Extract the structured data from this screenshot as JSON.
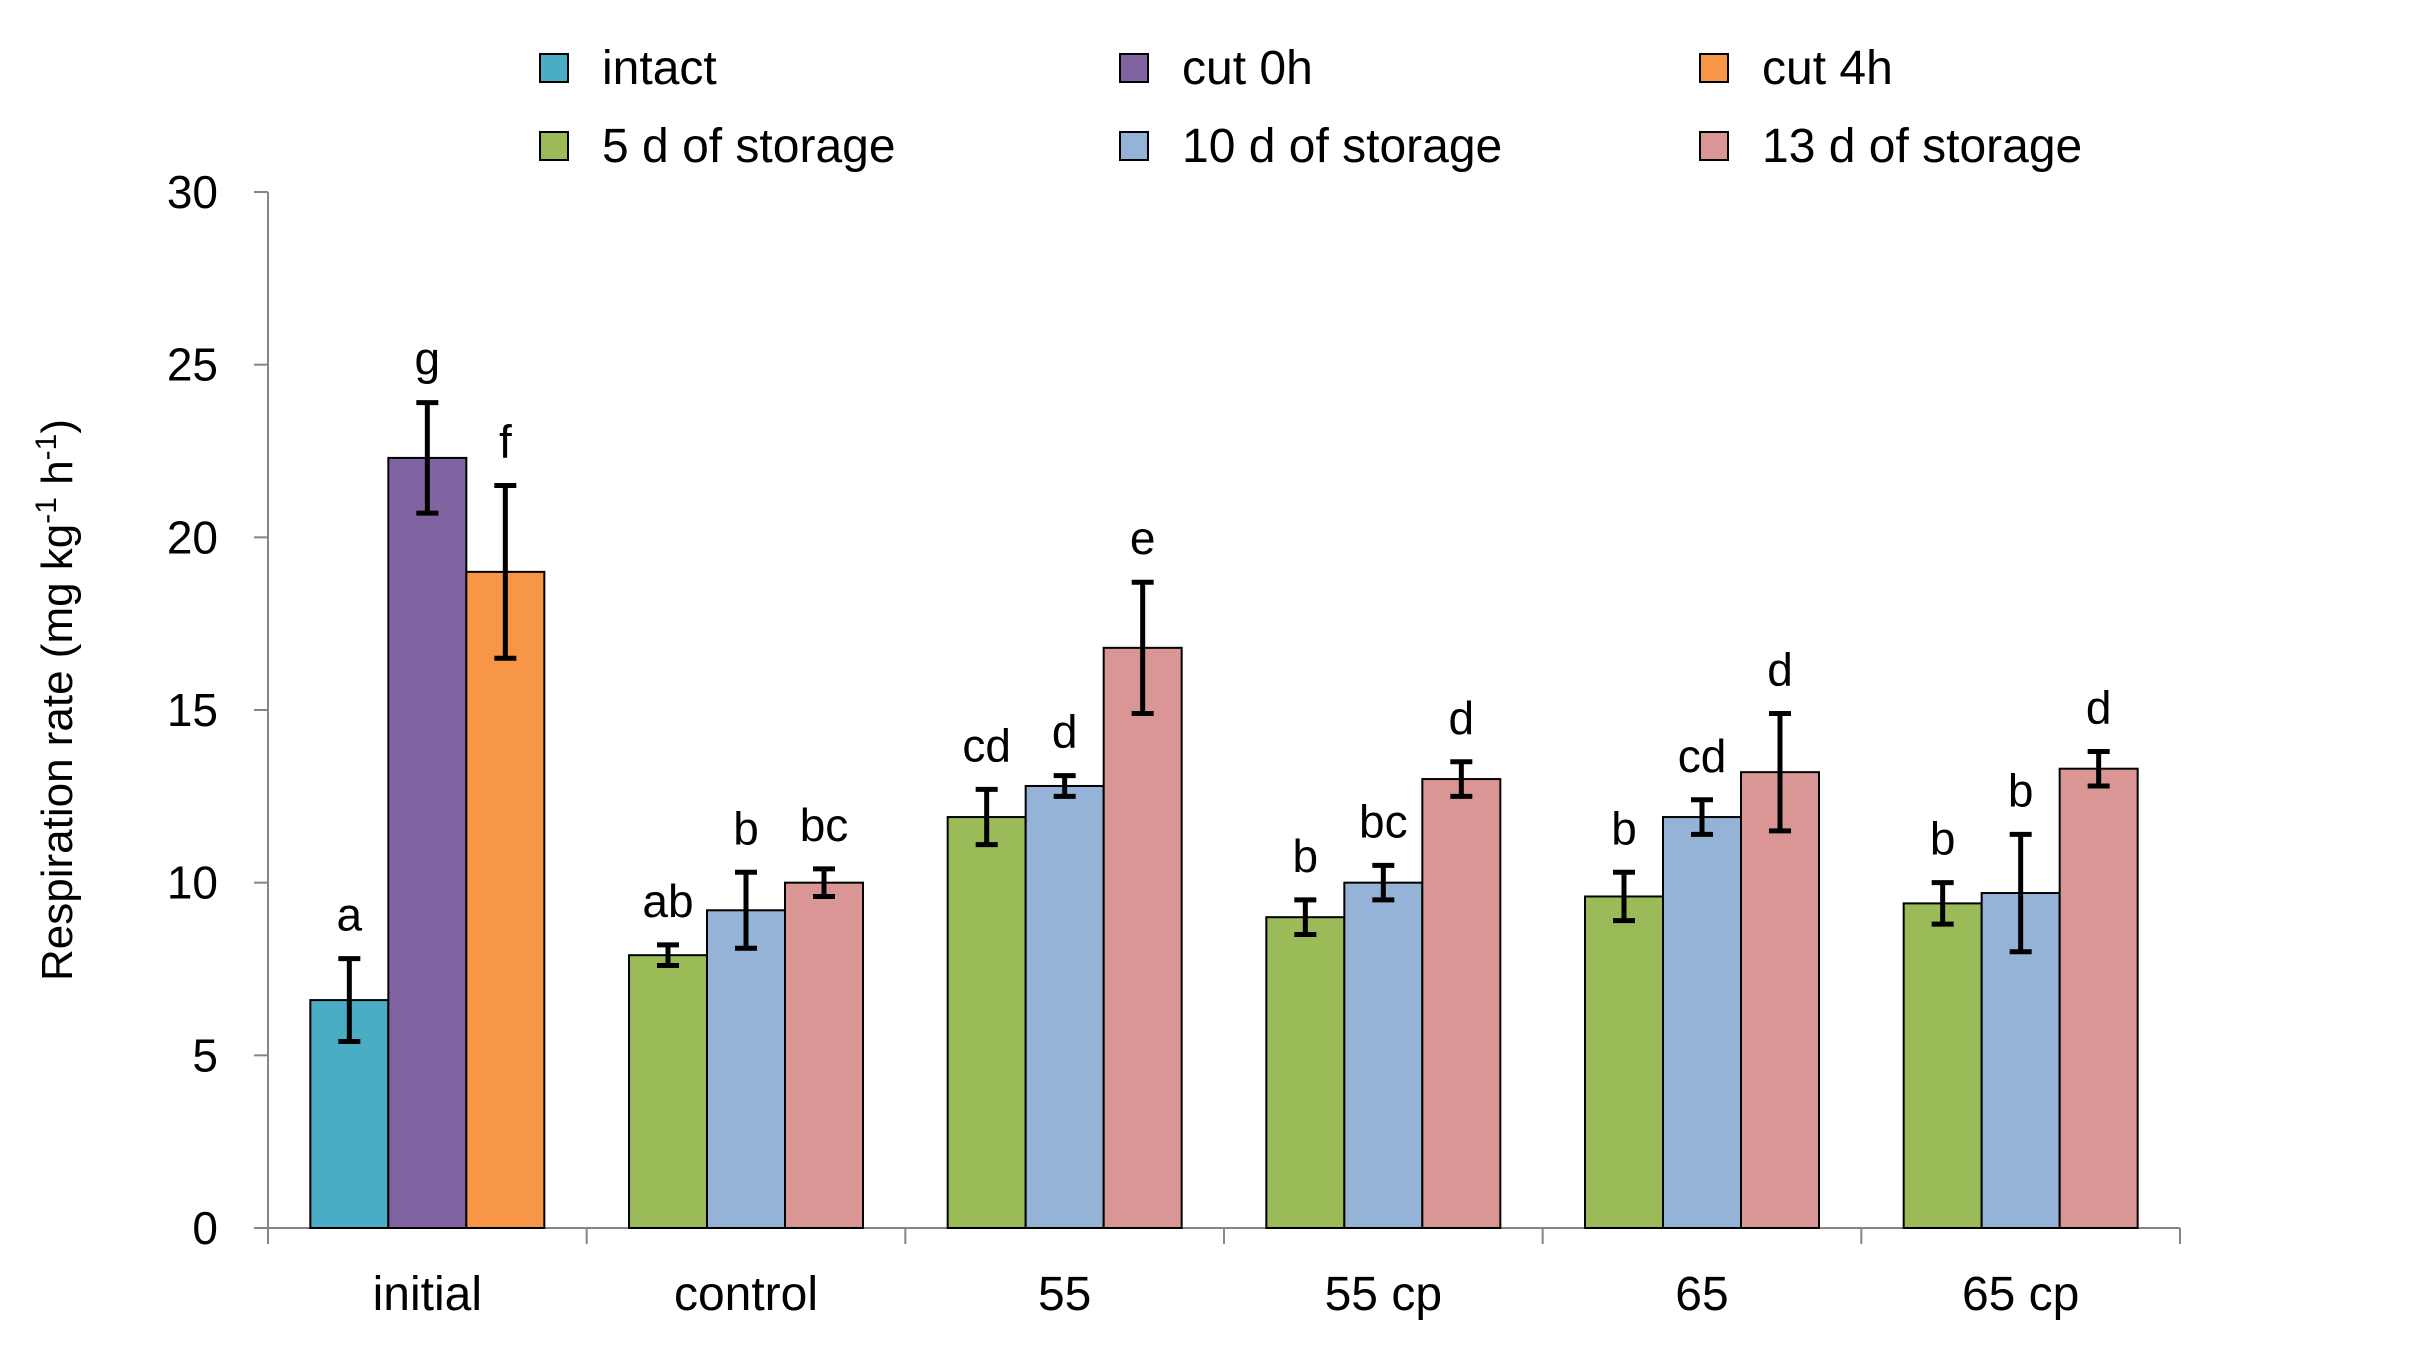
{
  "chart_data": {
    "type": "bar",
    "title": "",
    "xlabel": "",
    "ylabel": "Respiration rate (mg kg",
    "ylabel_sup1": "-1",
    "ylabel_mid": " h",
    "ylabel_sup2": "-1",
    "ylabel_end": ")",
    "ylim": [
      0,
      30
    ],
    "yticks": [
      0,
      5,
      10,
      15,
      20,
      25,
      30
    ],
    "grid": false,
    "legend_position": "top",
    "categories": [
      "initial",
      "control",
      "55",
      "55 cp",
      "65",
      "65 cp"
    ],
    "series": [
      {
        "name": "intact",
        "color": "#4BACC6"
      },
      {
        "name": "cut 0h",
        "color": "#8064A2"
      },
      {
        "name": "cut 4h",
        "color": "#F79646"
      },
      {
        "name": "5 d of storage",
        "color": "#9BBB59"
      },
      {
        "name": "10 d of storage",
        "color": "#95B3D7"
      },
      {
        "name": "13 d of storage",
        "color": "#D99694"
      }
    ],
    "groups": [
      {
        "category": "initial",
        "bars": [
          {
            "series": "intact",
            "value": 6.6,
            "error": 1.2,
            "letter": "a"
          },
          {
            "series": "cut 0h",
            "value": 22.3,
            "error": 1.6,
            "letter": "g"
          },
          {
            "series": "cut 4h",
            "value": 19.0,
            "error": 2.5,
            "letter": "f"
          }
        ]
      },
      {
        "category": "control",
        "bars": [
          {
            "series": "5 d of storage",
            "value": 7.9,
            "error": 0.3,
            "letter": "ab"
          },
          {
            "series": "10 d of storage",
            "value": 9.2,
            "error": 1.1,
            "letter": "b"
          },
          {
            "series": "13 d of storage",
            "value": 10.0,
            "error": 0.4,
            "letter": "bc"
          }
        ]
      },
      {
        "category": "55",
        "bars": [
          {
            "series": "5 d of storage",
            "value": 11.9,
            "error": 0.8,
            "letter": "cd"
          },
          {
            "series": "10 d of storage",
            "value": 12.8,
            "error": 0.3,
            "letter": "d"
          },
          {
            "series": "13 d of storage",
            "value": 16.8,
            "error": 1.9,
            "letter": "e"
          }
        ]
      },
      {
        "category": "55 cp",
        "bars": [
          {
            "series": "5 d of storage",
            "value": 9.0,
            "error": 0.5,
            "letter": "b"
          },
          {
            "series": "10 d of storage",
            "value": 10.0,
            "error": 0.5,
            "letter": "bc"
          },
          {
            "series": "13 d of storage",
            "value": 13.0,
            "error": 0.5,
            "letter": "d"
          }
        ]
      },
      {
        "category": "65",
        "bars": [
          {
            "series": "5 d of storage",
            "value": 9.6,
            "error": 0.7,
            "letter": "b"
          },
          {
            "series": "10 d of storage",
            "value": 11.9,
            "error": 0.5,
            "letter": "cd"
          },
          {
            "series": "13 d of storage",
            "value": 13.2,
            "error": 1.7,
            "letter": "d"
          }
        ]
      },
      {
        "category": "65 cp",
        "bars": [
          {
            "series": "5 d of storage",
            "value": 9.4,
            "error": 0.6,
            "letter": "b"
          },
          {
            "series": "10 d of storage",
            "value": 9.7,
            "error": 1.7,
            "letter": "b"
          },
          {
            "series": "13 d of storage",
            "value": 13.3,
            "error": 0.5,
            "letter": "d"
          }
        ]
      }
    ]
  }
}
